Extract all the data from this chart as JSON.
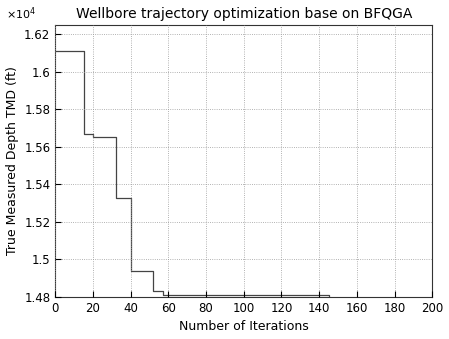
{
  "title": "Wellbore trajectory optimization base on BFQGA",
  "xlabel": "Number of Iterations",
  "ylabel": "True Measured Depth TMD (ft)",
  "xlim": [
    0,
    200
  ],
  "ylim": [
    14800,
    16250
  ],
  "ytick_scale": 10000,
  "xticks": [
    0,
    20,
    40,
    60,
    80,
    100,
    120,
    140,
    160,
    180,
    200
  ],
  "ytick_values": [
    14800,
    15000,
    15200,
    15400,
    15600,
    15800,
    16000,
    16200
  ],
  "ytick_labels": [
    "1.48",
    "1.5",
    "1.52",
    "1.54",
    "1.56",
    "1.58",
    "1.6",
    "1.62"
  ],
  "step_x": [
    0,
    15,
    15,
    20,
    20,
    32,
    32,
    40,
    40,
    52,
    52,
    57,
    57,
    145,
    145,
    200
  ],
  "step_y": [
    16110,
    16110,
    15670,
    15670,
    15650,
    15650,
    15330,
    15330,
    14940,
    14940,
    14830,
    14830,
    14810,
    14810,
    14780,
    14780
  ],
  "line_color": "#444444",
  "line_width": 0.9,
  "background_color": "#ffffff",
  "grid_color": "#999999",
  "title_fontsize": 10,
  "label_fontsize": 9,
  "tick_fontsize": 8.5
}
